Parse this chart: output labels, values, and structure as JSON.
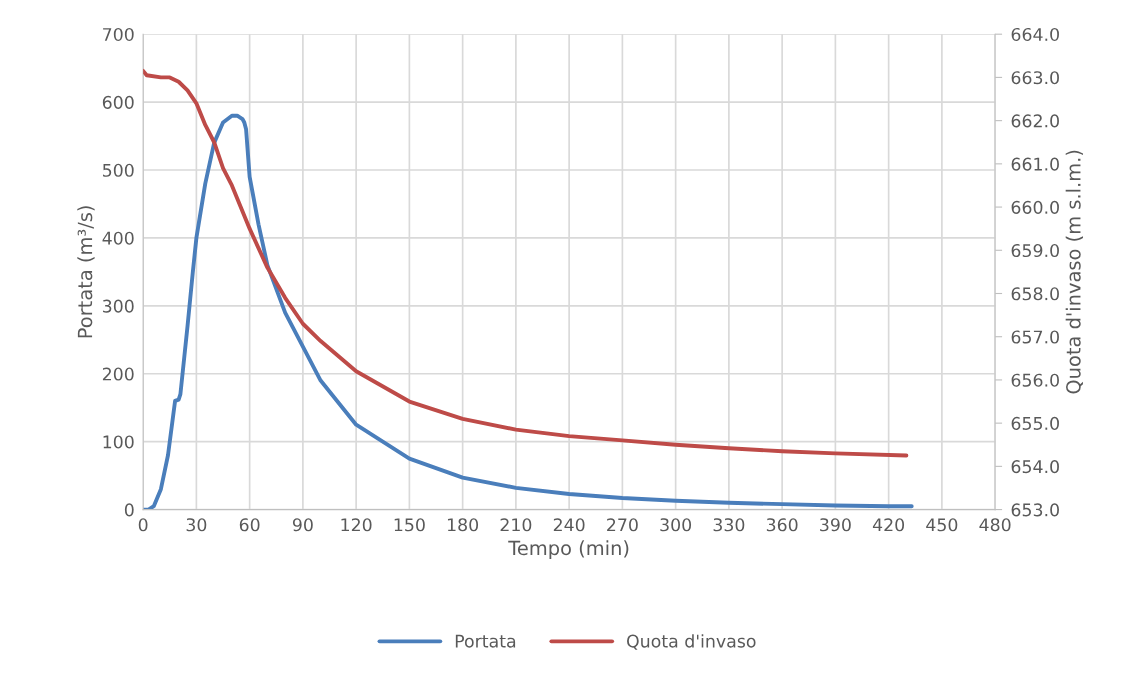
{
  "chart_data": {
    "type": "line",
    "xlabel": "Tempo (min)",
    "ylabel": "Portata (m³/s)",
    "y2label": "Quota d'invaso (m s.l.m.)",
    "xlim": [
      0,
      480
    ],
    "xticks": [
      0,
      30,
      60,
      90,
      120,
      150,
      180,
      210,
      240,
      270,
      300,
      330,
      360,
      390,
      420,
      450,
      480
    ],
    "ylim": [
      0,
      700
    ],
    "yticks": [
      0,
      100,
      200,
      300,
      400,
      500,
      600,
      700
    ],
    "y2lim": [
      653,
      664
    ],
    "y2ticks": [
      {
        "value": 653,
        "label": "653.0"
      },
      {
        "value": 654,
        "label": "654.0"
      },
      {
        "value": 655,
        "label": "655.0"
      },
      {
        "value": 656,
        "label": "656.0"
      },
      {
        "value": 657,
        "label": "657.0"
      },
      {
        "value": 658,
        "label": "658.0"
      },
      {
        "value": 659,
        "label": "659.0"
      },
      {
        "value": 660,
        "label": "660.0"
      },
      {
        "value": 661,
        "label": "661.0"
      },
      {
        "value": 662,
        "label": "662.0"
      },
      {
        "value": 663,
        "label": "663.0"
      },
      {
        "value": 664,
        "label": "664.0"
      }
    ],
    "grid": true,
    "legend": "bottom",
    "marker": "none",
    "line_style": "solid",
    "series": [
      {
        "name": "Portata",
        "color": "#4a7ebb",
        "x": [
          0,
          3,
          6,
          10,
          14,
          17,
          18,
          20,
          21,
          25,
          28,
          30,
          35,
          40,
          45,
          50,
          53,
          56,
          57,
          58,
          60,
          65,
          70,
          80,
          90,
          100,
          120,
          150,
          180,
          210,
          240,
          270,
          300,
          330,
          360,
          390,
          420,
          433
        ],
        "values": [
          0,
          0,
          5,
          30,
          80,
          140,
          160,
          162,
          170,
          270,
          350,
          400,
          480,
          540,
          570,
          580,
          580,
          575,
          570,
          560,
          490,
          420,
          360,
          290,
          240,
          190,
          125,
          75,
          47,
          32,
          23,
          17,
          13,
          10,
          8,
          6,
          5,
          5
        ]
      },
      {
        "name": "Quota d'invaso",
        "color": "#be4b48",
        "axis": "y2",
        "x": [
          0,
          2,
          10,
          15,
          20,
          25,
          30,
          35,
          40,
          45,
          50,
          60,
          70,
          80,
          90,
          100,
          120,
          150,
          180,
          210,
          240,
          270,
          300,
          330,
          360,
          390,
          430
        ],
        "values": [
          663.15,
          663.05,
          663.0,
          663.0,
          662.9,
          662.7,
          662.4,
          661.9,
          661.5,
          660.9,
          660.5,
          659.5,
          658.6,
          657.9,
          657.3,
          656.9,
          656.2,
          655.5,
          655.1,
          654.85,
          654.7,
          654.6,
          654.5,
          654.42,
          654.35,
          654.3,
          654.25
        ]
      }
    ]
  }
}
